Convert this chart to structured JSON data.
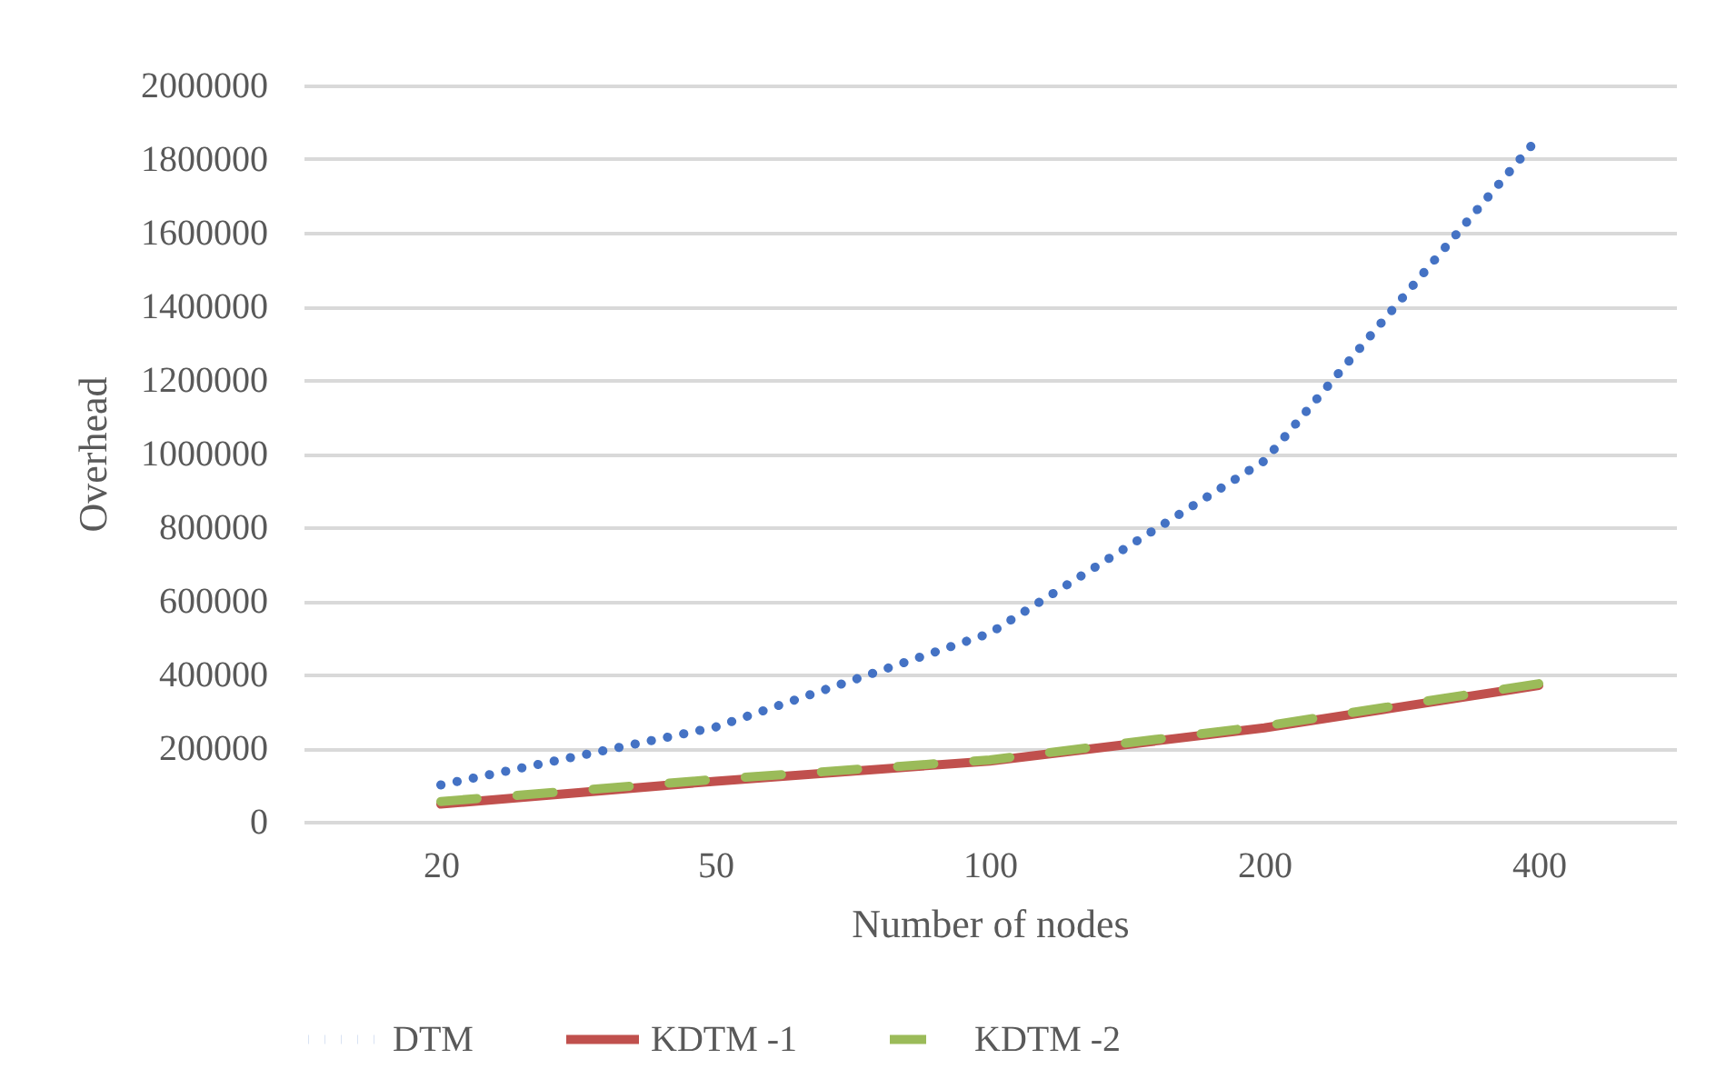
{
  "chart_data": {
    "type": "line",
    "xlabel": "Number of nodes",
    "ylabel": "Overhead",
    "categories": [
      "20",
      "50",
      "100",
      "200",
      "400"
    ],
    "series": [
      {
        "name": "DTM",
        "color": "#4472c4",
        "line_style": "dotted",
        "values": [
          100000,
          257000,
          512000,
          980000,
          1860000
        ]
      },
      {
        "name": "KDTM -1",
        "color": "#c0504d",
        "line_style": "solid",
        "values": [
          48000,
          110000,
          165000,
          255000,
          370000
        ]
      },
      {
        "name": "KDTM -2",
        "color": "#9bbb59",
        "line_style": "dashed",
        "values": [
          55000,
          115000,
          168000,
          260000,
          375000
        ]
      }
    ],
    "ylim": [
      0,
      2000000
    ],
    "yticks": [
      0,
      200000,
      400000,
      600000,
      800000,
      1000000,
      1200000,
      1400000,
      1600000,
      1800000,
      2000000
    ],
    "grid": "y",
    "legend": "bottom"
  }
}
